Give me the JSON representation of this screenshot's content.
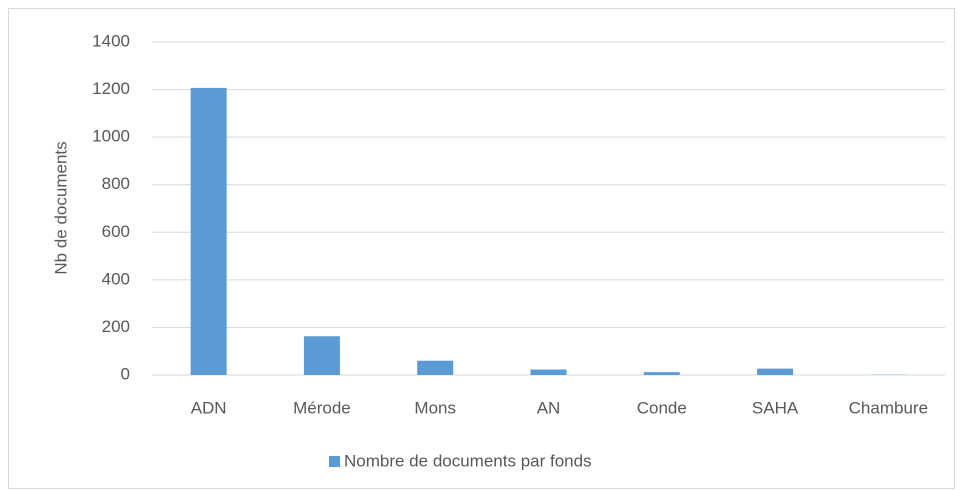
{
  "chart_data": {
    "type": "bar",
    "y_label": "Nb de documents",
    "categories": [
      "ADN",
      "Mérode",
      "Mons",
      "AN",
      "Conde",
      "SAHA",
      "Chambure"
    ],
    "series": [
      {
        "name": "Nombre de documents par fonds",
        "color": "#5b9bd5",
        "values": [
          1207,
          163,
          60,
          23,
          12,
          27,
          1
        ]
      }
    ],
    "ylim": [
      0,
      1400
    ],
    "yticks": [
      0,
      200,
      400,
      600,
      800,
      1000,
      1200,
      1400
    ],
    "grid": true,
    "legend": "bottom"
  }
}
